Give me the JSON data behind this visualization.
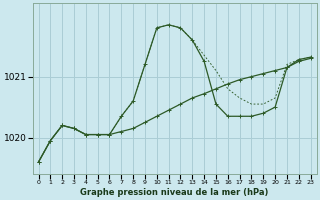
{
  "title": "Graphe pression niveau de la mer (hPa)",
  "yticks": [
    1020,
    1021
  ],
  "ylim": [
    1019.4,
    1022.2
  ],
  "xlim": [
    -0.5,
    23.5
  ],
  "bg_color": "#cce8ee",
  "grid_color": "#aacdd5",
  "line_color": "#2d5a27",
  "line1_x": [
    0,
    1,
    2,
    3,
    4,
    5,
    6,
    7,
    8,
    9,
    10,
    11,
    12,
    13,
    14,
    15,
    16,
    17,
    18,
    19,
    20,
    21,
    22,
    23
  ],
  "line1_y": [
    1019.6,
    1019.95,
    1020.2,
    1020.15,
    1020.05,
    1020.05,
    1020.05,
    1020.1,
    1020.15,
    1020.25,
    1020.35,
    1020.45,
    1020.55,
    1020.65,
    1020.72,
    1020.8,
    1020.88,
    1020.95,
    1021.0,
    1021.05,
    1021.1,
    1021.15,
    1021.25,
    1021.3
  ],
  "line2_x": [
    0,
    1,
    2,
    3,
    4,
    5,
    6,
    7,
    8,
    9,
    10,
    11,
    12,
    13,
    14,
    15,
    16,
    17,
    18,
    19,
    20,
    21,
    22,
    23
  ],
  "line2_y": [
    1019.6,
    1019.95,
    1020.2,
    1020.15,
    1020.05,
    1020.05,
    1020.05,
    1020.35,
    1020.6,
    1021.2,
    1021.8,
    1021.85,
    1021.8,
    1021.6,
    1021.25,
    1020.55,
    1020.35,
    1020.35,
    1020.35,
    1020.4,
    1020.5,
    1021.15,
    1021.28,
    1021.32
  ],
  "line3_x": [
    0,
    1,
    2,
    3,
    4,
    5,
    6,
    7,
    8,
    9,
    10,
    11,
    12,
    13,
    14,
    15,
    16,
    17,
    18,
    19,
    20,
    21,
    22,
    23
  ],
  "line3_y": [
    1019.6,
    1019.95,
    1020.2,
    1020.15,
    1020.05,
    1020.05,
    1020.05,
    1020.35,
    1020.6,
    1021.2,
    1021.8,
    1021.85,
    1021.8,
    1021.6,
    1021.35,
    1021.1,
    1020.8,
    1020.65,
    1020.55,
    1020.55,
    1020.65,
    1021.2,
    1021.28,
    1021.32
  ]
}
